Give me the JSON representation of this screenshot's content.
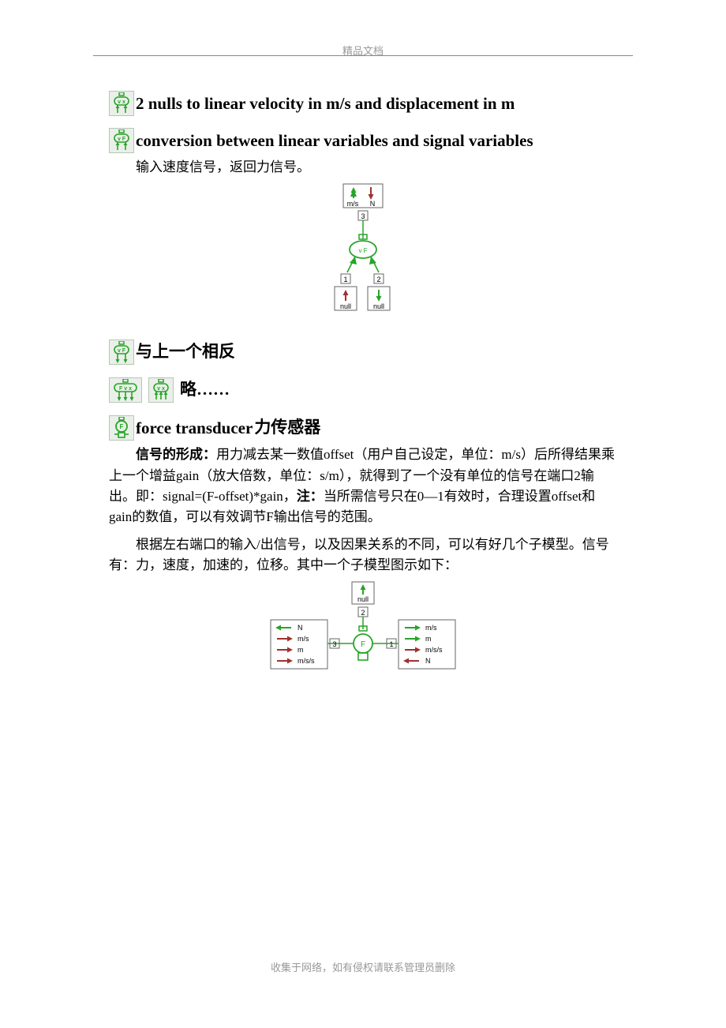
{
  "colors": {
    "green": "#28a428",
    "darkred": "#a03030",
    "black": "#000000",
    "grey": "#999999",
    "box_border": "#666666",
    "icon_bg": "#eaf0e9",
    "icon_border": "#b5c7b5"
  },
  "header": "精品文档",
  "footer": "收集于网络，如有侵权请联系管理员删除",
  "sections": {
    "s1": {
      "title": "2 nulls to linear velocity in m/s and displacement in m"
    },
    "s2": {
      "title": "conversion between linear variables and signal variables",
      "body": "输入速度信号，返回力信号。"
    },
    "s3": {
      "title": "与上一个相反"
    },
    "s4": {
      "title": "略……"
    },
    "s5": {
      "title_en": "force transducer ",
      "title_cn": "力传感器",
      "p1a": "信号的形成：",
      "p1b": "用力减去某一数值offset（用户自己设定，单位：m/s）后所得结果乘上一个增益gain（放大倍数，单位：s/m），就得到了一个没有单位的信号在端口2输出。即：signal=(F-offset)*gain，",
      "p1c": "注：",
      "p1d": "当所需信号只在0—1有效时，合理设置offset和gain的数值，可以有效调节F输出信号的范围。",
      "p2": "根据左右端口的输入/出信号，以及因果关系的不同，可以有好几个子模型。信号有：力，速度，加速的，位移。其中一个子模型图示如下："
    }
  },
  "diagram1": {
    "top_labels": [
      "m/s",
      "N"
    ],
    "top_port": "3",
    "bottom_ports": [
      "1",
      "2"
    ],
    "bottom_labels": [
      "null",
      "null"
    ]
  },
  "diagram2": {
    "top_label": "null",
    "top_port": "2",
    "left_port": "3",
    "right_port": "1",
    "left_rows": [
      {
        "label": "N",
        "color": "#28a428",
        "dir": "left"
      },
      {
        "label": "m/s",
        "color": "#a03030",
        "dir": "right"
      },
      {
        "label": "m",
        "color": "#a03030",
        "dir": "right"
      },
      {
        "label": "m/s/s",
        "color": "#a03030",
        "dir": "right"
      }
    ],
    "right_rows": [
      {
        "label": "m/s",
        "color": "#28a428",
        "dir": "right"
      },
      {
        "label": "m",
        "color": "#28a428",
        "dir": "right"
      },
      {
        "label": "m/s/s",
        "color": "#a03030",
        "dir": "right"
      },
      {
        "label": "N",
        "color": "#a03030",
        "dir": "left"
      }
    ]
  }
}
